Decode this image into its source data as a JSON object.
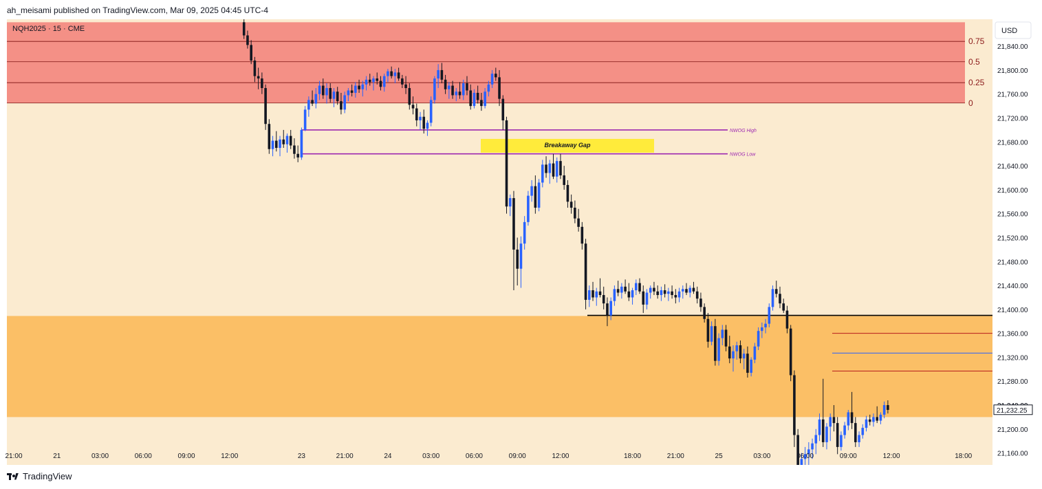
{
  "header": {
    "publish_text": "ah_meisami published on TradingView.com, Mar 09, 2025 04:45 UTC-4"
  },
  "symbol_label": "NQH2025 · 15 · CME",
  "currency_button": "USD",
  "footer": {
    "brand": "TradingView"
  },
  "colors": {
    "background": "#fbebd0",
    "premium_zone": "#f49086",
    "discount_zone": "#fbbf66",
    "up_candle": "#2962ff",
    "down_candle": "#131722",
    "nwog_line": "#9c27b0",
    "gap_box": "#ffeb3b",
    "fib_line": "#7a1010",
    "fib_text": "#8b1a1a"
  },
  "chart_data": {
    "type": "candlestick",
    "symbol": "NQH2025",
    "interval": "15",
    "exchange": "CME",
    "currency": "USD",
    "ylim": [
      21140,
      21885
    ],
    "y_ticks": [
      "21,840.00",
      "21,800.00",
      "21,760.00",
      "21,720.00",
      "21,680.00",
      "21,640.00",
      "21,600.00",
      "21,560.00",
      "21,520.00",
      "21,480.00",
      "21,440.00",
      "21,400.00",
      "21,360.00",
      "21,320.00",
      "21,280.00",
      "21,240.00",
      "21,200.00",
      "21,160.00"
    ],
    "x_ticks": [
      {
        "label": "21:00",
        "bar": 0
      },
      {
        "label": "21",
        "bar": 12
      },
      {
        "label": "03:00",
        "bar": 24
      },
      {
        "label": "06:00",
        "bar": 36
      },
      {
        "label": "09:00",
        "bar": 48
      },
      {
        "label": "12:00",
        "bar": 60
      },
      {
        "label": "23",
        "bar": 80
      },
      {
        "label": "21:00",
        "bar": 92
      },
      {
        "label": "24",
        "bar": 104
      },
      {
        "label": "03:00",
        "bar": 116
      },
      {
        "label": "06:00",
        "bar": 128
      },
      {
        "label": "09:00",
        "bar": 140
      },
      {
        "label": "12:00",
        "bar": 152
      },
      {
        "label": "18:00",
        "bar": 172
      },
      {
        "label": "21:00",
        "bar": 184
      },
      {
        "label": "25",
        "bar": 196
      },
      {
        "label": "03:00",
        "bar": 208
      },
      {
        "label": "06:00",
        "bar": 220
      },
      {
        "label": "09:00",
        "bar": 232
      },
      {
        "label": "12:00",
        "bar": 244
      },
      {
        "label": "18:00",
        "bar": 264
      }
    ],
    "last_price": "21,232.25",
    "last_price_value": 21232.25,
    "partial_tick_label": "21,240.00",
    "fib_levels": [
      {
        "label": "0.75",
        "price": 21848
      },
      {
        "label": "0.5",
        "price": 21814
      },
      {
        "label": "0.25",
        "price": 21779
      },
      {
        "label": "0",
        "price": 21745
      }
    ],
    "premium_zone": {
      "from": 21745,
      "to": 21880,
      "start_bar": 0
    },
    "discount_zone": {
      "from": 21220,
      "to": 21389,
      "start_bar": 0
    },
    "nwog": [
      {
        "label": "NWOG High",
        "price": 21700,
        "start_bar": 80
      },
      {
        "label": "NWOG Low",
        "price": 21660,
        "start_bar": 80
      }
    ],
    "breakaway_gap": {
      "label": "Breakaway Gap",
      "top": 21685,
      "bottom": 21662,
      "start_bar": 129,
      "end_bar": 176
    },
    "support_level": {
      "price": 21390,
      "start_bar": 159
    },
    "levels_right": [
      {
        "price": 21360,
        "start_bar": 227,
        "color": "#b71c1c"
      },
      {
        "price": 21327,
        "start_bar": 227,
        "color": "#2962ff"
      },
      {
        "price": 21297,
        "start_bar": 227,
        "color": "#b71c1c"
      }
    ],
    "ohlc": [
      [
        64,
        21880,
        21885,
        21852,
        21858
      ],
      [
        65,
        21858,
        21866,
        21836,
        21842
      ],
      [
        66,
        21842,
        21850,
        21810,
        21816
      ],
      [
        67,
        21816,
        21822,
        21780,
        21790
      ],
      [
        68,
        21790,
        21804,
        21768,
        21786
      ],
      [
        69,
        21786,
        21796,
        21760,
        21770
      ],
      [
        70,
        21770,
        21776,
        21700,
        21710
      ],
      [
        71,
        21710,
        21718,
        21660,
        21668
      ],
      [
        72,
        21668,
        21690,
        21656,
        21682
      ],
      [
        73,
        21682,
        21698,
        21664,
        21670
      ],
      [
        74,
        21670,
        21690,
        21656,
        21684
      ],
      [
        75,
        21684,
        21700,
        21670,
        21676
      ],
      [
        76,
        21676,
        21694,
        21662,
        21690
      ],
      [
        77,
        21690,
        21700,
        21668,
        21674
      ],
      [
        78,
        21674,
        21686,
        21652,
        21660
      ],
      [
        79,
        21660,
        21674,
        21646,
        21654
      ],
      [
        80,
        21654,
        21704,
        21650,
        21700
      ],
      [
        81,
        21700,
        21740,
        21698,
        21734
      ],
      [
        82,
        21734,
        21756,
        21722,
        21750
      ],
      [
        83,
        21750,
        21766,
        21740,
        21744
      ],
      [
        84,
        21744,
        21770,
        21736,
        21760
      ],
      [
        85,
        21760,
        21782,
        21750,
        21774
      ],
      [
        86,
        21774,
        21786,
        21752,
        21758
      ],
      [
        87,
        21758,
        21778,
        21744,
        21770
      ],
      [
        88,
        21770,
        21778,
        21746,
        21752
      ],
      [
        89,
        21752,
        21770,
        21738,
        21764
      ],
      [
        90,
        21764,
        21772,
        21742,
        21748
      ],
      [
        91,
        21748,
        21762,
        21726,
        21734
      ],
      [
        92,
        21734,
        21764,
        21728,
        21758
      ],
      [
        93,
        21758,
        21770,
        21748,
        21766
      ],
      [
        94,
        21766,
        21776,
        21756,
        21762
      ],
      [
        95,
        21762,
        21780,
        21754,
        21774
      ],
      [
        96,
        21774,
        21784,
        21762,
        21768
      ],
      [
        97,
        21768,
        21782,
        21756,
        21776
      ],
      [
        98,
        21776,
        21790,
        21766,
        21784
      ],
      [
        99,
        21784,
        21794,
        21774,
        21780
      ],
      [
        100,
        21780,
        21790,
        21766,
        21786
      ],
      [
        101,
        21786,
        21796,
        21776,
        21782
      ],
      [
        102,
        21782,
        21790,
        21766,
        21772
      ],
      [
        103,
        21772,
        21794,
        21764,
        21790
      ],
      [
        104,
        21790,
        21802,
        21780,
        21798
      ],
      [
        105,
        21798,
        21806,
        21786,
        21790
      ],
      [
        106,
        21790,
        21802,
        21778,
        21796
      ],
      [
        107,
        21796,
        21804,
        21782,
        21786
      ],
      [
        108,
        21786,
        21792,
        21770,
        21776
      ],
      [
        109,
        21776,
        21790,
        21760,
        21770
      ],
      [
        110,
        21770,
        21778,
        21734,
        21742
      ],
      [
        111,
        21742,
        21756,
        21726,
        21736
      ],
      [
        112,
        21736,
        21744,
        21706,
        21716
      ],
      [
        113,
        21716,
        21730,
        21700,
        21722
      ],
      [
        114,
        21722,
        21734,
        21694,
        21702
      ],
      [
        115,
        21702,
        21716,
        21690,
        21712
      ],
      [
        116,
        21712,
        21756,
        21706,
        21750
      ],
      [
        117,
        21750,
        21790,
        21744,
        21786
      ],
      [
        118,
        21786,
        21810,
        21770,
        21800
      ],
      [
        119,
        21800,
        21812,
        21778,
        21784
      ],
      [
        120,
        21784,
        21792,
        21760,
        21768
      ],
      [
        121,
        21768,
        21780,
        21752,
        21774
      ],
      [
        122,
        21774,
        21782,
        21752,
        21758
      ],
      [
        123,
        21758,
        21770,
        21748,
        21764
      ],
      [
        124,
        21764,
        21780,
        21752,
        21758
      ],
      [
        125,
        21758,
        21784,
        21750,
        21778
      ],
      [
        126,
        21778,
        21790,
        21758,
        21766
      ],
      [
        127,
        21766,
        21776,
        21734,
        21740
      ],
      [
        128,
        21740,
        21768,
        21736,
        21762
      ],
      [
        129,
        21762,
        21774,
        21744,
        21750
      ],
      [
        130,
        21750,
        21762,
        21732,
        21740
      ],
      [
        131,
        21740,
        21770,
        21736,
        21764
      ],
      [
        132,
        21764,
        21782,
        21756,
        21776
      ],
      [
        133,
        21776,
        21800,
        21770,
        21794
      ],
      [
        134,
        21794,
        21804,
        21782,
        21788
      ],
      [
        135,
        21788,
        21800,
        21740,
        21752
      ],
      [
        136,
        21752,
        21758,
        21700,
        21716
      ],
      [
        137,
        21716,
        21722,
        21560,
        21572
      ],
      [
        138,
        21572,
        21592,
        21556,
        21586
      ],
      [
        139,
        21586,
        21598,
        21432,
        21500
      ],
      [
        140,
        21500,
        21520,
        21440,
        21468
      ],
      [
        141,
        21468,
        21522,
        21436,
        21510
      ],
      [
        142,
        21510,
        21556,
        21500,
        21546
      ],
      [
        143,
        21546,
        21598,
        21540,
        21590
      ],
      [
        144,
        21590,
        21616,
        21580,
        21606
      ],
      [
        145,
        21606,
        21624,
        21560,
        21570
      ],
      [
        146,
        21570,
        21618,
        21564,
        21612
      ],
      [
        147,
        21612,
        21650,
        21604,
        21642
      ],
      [
        148,
        21642,
        21656,
        21620,
        21628
      ],
      [
        149,
        21628,
        21650,
        21610,
        21644
      ],
      [
        150,
        21644,
        21660,
        21618,
        21622
      ],
      [
        151,
        21622,
        21654,
        21612,
        21648
      ],
      [
        152,
        21648,
        21660,
        21618,
        21624
      ],
      [
        153,
        21624,
        21640,
        21600,
        21608
      ],
      [
        154,
        21608,
        21616,
        21570,
        21580
      ],
      [
        155,
        21580,
        21592,
        21560,
        21570
      ],
      [
        156,
        21570,
        21582,
        21544,
        21552
      ],
      [
        157,
        21552,
        21568,
        21530,
        21538
      ],
      [
        158,
        21538,
        21546,
        21500,
        21510
      ],
      [
        159,
        21510,
        21518,
        21400,
        21416
      ],
      [
        160,
        21416,
        21440,
        21404,
        21432
      ],
      [
        161,
        21432,
        21446,
        21414,
        21420
      ],
      [
        162,
        21420,
        21436,
        21406,
        21430
      ],
      [
        163,
        21430,
        21452,
        21420,
        21424
      ],
      [
        164,
        21424,
        21438,
        21400,
        21410
      ],
      [
        165,
        21410,
        21420,
        21372,
        21390
      ],
      [
        166,
        21390,
        21420,
        21382,
        21414
      ],
      [
        167,
        21414,
        21440,
        21406,
        21434
      ],
      [
        168,
        21434,
        21448,
        21422,
        21428
      ],
      [
        169,
        21428,
        21444,
        21418,
        21438
      ],
      [
        170,
        21438,
        21450,
        21426,
        21430
      ],
      [
        171,
        21430,
        21444,
        21414,
        21420
      ],
      [
        172,
        21420,
        21436,
        21408,
        21432
      ],
      [
        173,
        21432,
        21450,
        21424,
        21444
      ],
      [
        174,
        21444,
        21452,
        21426,
        21430
      ],
      [
        175,
        21430,
        21440,
        21394,
        21408
      ],
      [
        176,
        21408,
        21434,
        21400,
        21428
      ],
      [
        177,
        21428,
        21440,
        21418,
        21436
      ],
      [
        178,
        21436,
        21446,
        21424,
        21430
      ],
      [
        179,
        21430,
        21440,
        21418,
        21424
      ],
      [
        180,
        21424,
        21438,
        21414,
        21432
      ],
      [
        181,
        21432,
        21442,
        21420,
        21426
      ],
      [
        182,
        21426,
        21436,
        21414,
        21430
      ],
      [
        183,
        21430,
        21440,
        21418,
        21424
      ],
      [
        184,
        21424,
        21434,
        21410,
        21420
      ],
      [
        185,
        21420,
        21436,
        21412,
        21430
      ],
      [
        186,
        21430,
        21440,
        21418,
        21434
      ],
      [
        187,
        21434,
        21444,
        21424,
        21428
      ],
      [
        188,
        21428,
        21440,
        21420,
        21436
      ],
      [
        189,
        21436,
        21446,
        21426,
        21430
      ],
      [
        190,
        21430,
        21438,
        21410,
        21418
      ],
      [
        191,
        21418,
        21428,
        21396,
        21404
      ],
      [
        192,
        21404,
        21410,
        21378,
        21384
      ],
      [
        193,
        21384,
        21394,
        21336,
        21346
      ],
      [
        194,
        21346,
        21380,
        21340,
        21372
      ],
      [
        195,
        21372,
        21384,
        21306,
        21314
      ],
      [
        196,
        21314,
        21360,
        21306,
        21352
      ],
      [
        197,
        21352,
        21374,
        21340,
        21366
      ],
      [
        198,
        21366,
        21374,
        21330,
        21338
      ],
      [
        199,
        21338,
        21356,
        21310,
        21318
      ],
      [
        200,
        21318,
        21340,
        21296,
        21330
      ],
      [
        201,
        21330,
        21346,
        21316,
        21340
      ],
      [
        202,
        21340,
        21348,
        21310,
        21318
      ],
      [
        203,
        21318,
        21334,
        21300,
        21326
      ],
      [
        204,
        21326,
        21338,
        21286,
        21294
      ],
      [
        205,
        21294,
        21320,
        21288,
        21316
      ],
      [
        206,
        21316,
        21344,
        21310,
        21338
      ],
      [
        207,
        21338,
        21370,
        21332,
        21364
      ],
      [
        208,
        21364,
        21378,
        21352,
        21370
      ],
      [
        209,
        21370,
        21384,
        21360,
        21376
      ],
      [
        210,
        21376,
        21410,
        21370,
        21404
      ],
      [
        211,
        21404,
        21440,
        21398,
        21434
      ],
      [
        212,
        21434,
        21448,
        21420,
        21426
      ],
      [
        213,
        21426,
        21438,
        21402,
        21410
      ],
      [
        214,
        21410,
        21418,
        21394,
        21398
      ],
      [
        215,
        21398,
        21406,
        21360,
        21368
      ],
      [
        216,
        21368,
        21374,
        21280,
        21290
      ],
      [
        217,
        21290,
        21298,
        21170,
        21190
      ],
      [
        218,
        21190,
        21200,
        21120,
        21140
      ],
      [
        219,
        21140,
        21160,
        21110,
        21150
      ],
      [
        220,
        21150,
        21170,
        21120,
        21158
      ],
      [
        221,
        21158,
        21178,
        21130,
        21166
      ],
      [
        222,
        21166,
        21184,
        21150,
        21176
      ],
      [
        223,
        21176,
        21200,
        21158,
        21190
      ],
      [
        224,
        21190,
        21226,
        21180,
        21216
      ],
      [
        225,
        21216,
        21284,
        21170,
        21178
      ],
      [
        226,
        21178,
        21210,
        21166,
        21204
      ],
      [
        227,
        21204,
        21226,
        21180,
        21220
      ],
      [
        228,
        21220,
        21240,
        21196,
        21210
      ],
      [
        229,
        21210,
        21220,
        21158,
        21170
      ],
      [
        230,
        21170,
        21196,
        21164,
        21190
      ],
      [
        231,
        21190,
        21212,
        21184,
        21206
      ],
      [
        232,
        21206,
        21232,
        21198,
        21228
      ],
      [
        233,
        21228,
        21262,
        21200,
        21210
      ],
      [
        234,
        21210,
        21220,
        21170,
        21178
      ],
      [
        235,
        21178,
        21196,
        21170,
        21190
      ],
      [
        236,
        21190,
        21208,
        21184,
        21202
      ],
      [
        237,
        21202,
        21222,
        21196,
        21216
      ],
      [
        238,
        21216,
        21224,
        21206,
        21212
      ],
      [
        239,
        21212,
        21226,
        21204,
        21220
      ],
      [
        240,
        21220,
        21238,
        21210,
        21214
      ],
      [
        241,
        21214,
        21228,
        21208,
        21224
      ],
      [
        242,
        21224,
        21246,
        21218,
        21240
      ],
      [
        243,
        21240,
        21248,
        21226,
        21232
      ]
    ]
  }
}
